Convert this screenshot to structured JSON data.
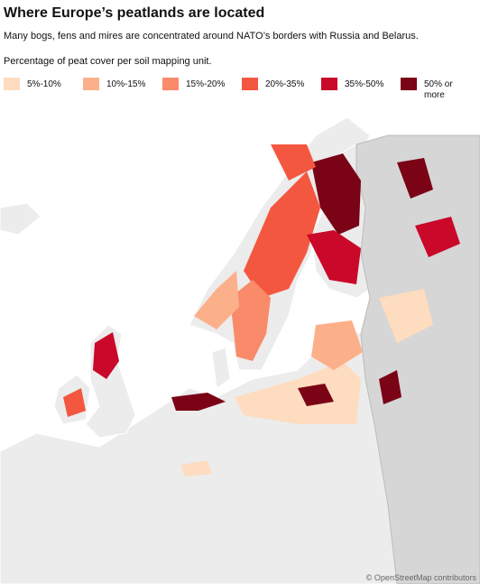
{
  "header": {
    "title": "Where Europe’s peatlands are located",
    "subtitle": "Many bogs, fens and mires are concentrated around NATO’s borders with Russia and Belarus."
  },
  "legend": {
    "title": "Percentage of peat cover per soil mapping unit.",
    "items": [
      {
        "label": "5%-10%",
        "color": "#fddcc0"
      },
      {
        "label": "10%-15%",
        "color": "#fcb08a"
      },
      {
        "label": "15%-20%",
        "color": "#f98a6a"
      },
      {
        "label": "20%-35%",
        "color": "#f4573f"
      },
      {
        "label": "35%-50%",
        "color": "#c9082a"
      },
      {
        "label": "50% or more",
        "color": "#7a0416"
      }
    ]
  },
  "attribution": "© OpenStreetMap contributors"
}
